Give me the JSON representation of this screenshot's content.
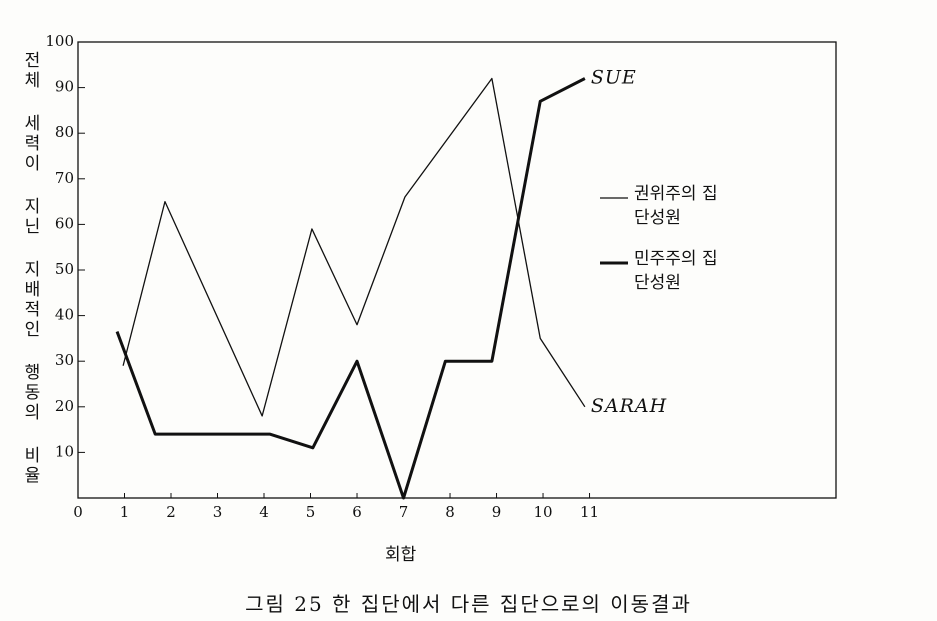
{
  "chart_data": {
    "type": "line",
    "caption": "그림 25  한 집단에서 다른 집단으로의 이동결과",
    "y_label": "전체 세력이 지닌 지배적인 행동의 비율",
    "x_label": "회합",
    "xlim": [
      0,
      16.3
    ],
    "ylim": [
      0,
      100
    ],
    "xticks": [
      0,
      1,
      2,
      3,
      4,
      5,
      6,
      7,
      8,
      9,
      10,
      11
    ],
    "yticks": [
      10,
      20,
      30,
      40,
      50,
      60,
      70,
      80,
      90,
      100
    ],
    "series": [
      {
        "name": "권위주의 집단성원",
        "annotation": "SARAH",
        "color": "#111111",
        "width": 1.3,
        "x": [
          0.97,
          1.87,
          3.96,
          5.03,
          6.0,
          7.03,
          8.9,
          9.94,
          10.9
        ],
        "values": [
          29,
          65,
          18,
          59,
          38,
          66,
          92,
          35,
          20
        ]
      },
      {
        "name": "민주주의 집단성원",
        "annotation": "SUE",
        "color": "#111111",
        "width": 3,
        "x": [
          0.84,
          1.66,
          4.13,
          5.05,
          6.0,
          7.0,
          7.9,
          8.9,
          9.94,
          10.9
        ],
        "values": [
          36.5,
          14,
          14,
          11,
          30,
          0,
          30,
          30,
          87,
          92
        ]
      }
    ]
  }
}
